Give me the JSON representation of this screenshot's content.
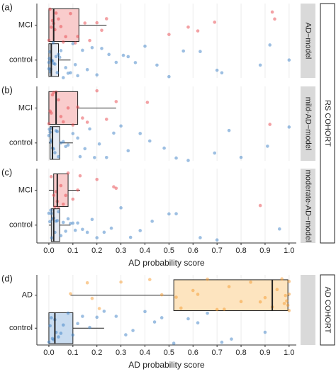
{
  "cohorts": [
    "RS COHORT",
    "AD COHORT"
  ],
  "chart_data": [
    {
      "type": "box",
      "panel": "(a)",
      "strip": "AD−model",
      "xlim": [
        -0.05,
        1.03
      ],
      "xticks": [
        0,
        0.1,
        0.2,
        0.3,
        0.4,
        0.5,
        0.6,
        0.7,
        0.8,
        0.9,
        1
      ],
      "boxes": [
        {
          "category": "MCI",
          "color": "#e8434a",
          "fill": "#f9cccc",
          "whisker_low": 0,
          "q1": 0,
          "median": 0.02,
          "q3": 0.125,
          "whisker_high": 0.24,
          "points": [
            0,
            0.005,
            0.01,
            0.015,
            0.02,
            0.025,
            0.03,
            0.04,
            0.05,
            0.06,
            0.07,
            0.09,
            0.11,
            0.12,
            0.15,
            0.17,
            0.2,
            0.22,
            0.24,
            0.5,
            0.58,
            0.62,
            0.69,
            0.93,
            0.94
          ]
        },
        {
          "category": "control",
          "color": "#3c7fc6",
          "fill": "#e6ebf3",
          "whisker_low": 0,
          "q1": 0,
          "median": 0.01,
          "q3": 0.04,
          "whisker_high": 0.09,
          "points": [
            0,
            0,
            0.002,
            0.004,
            0.006,
            0.008,
            0.01,
            0.012,
            0.015,
            0.018,
            0.02,
            0.025,
            0.03,
            0.035,
            0.04,
            0.045,
            0.05,
            0.06,
            0.07,
            0.08,
            0.09,
            0.1,
            0.11,
            0.12,
            0.14,
            0.16,
            0.18,
            0.2,
            0.22,
            0.25,
            0.28,
            0.31,
            0.33,
            0.36,
            0.4,
            0.45,
            0.5,
            0.56,
            0.63,
            0.7,
            0.72,
            0.88,
            0.92,
            1.0
          ]
        }
      ]
    },
    {
      "type": "box",
      "panel": "(b)",
      "strip": "mild-AD−model",
      "xlim": [
        -0.05,
        1.03
      ],
      "xticks": [
        0,
        0.1,
        0.2,
        0.3,
        0.4,
        0.5,
        0.6,
        0.7,
        0.8,
        0.9,
        1
      ],
      "boxes": [
        {
          "category": "MCI",
          "color": "#e8434a",
          "fill": "#f9cccc",
          "whisker_low": 0,
          "q1": 0,
          "median": 0.03,
          "q3": 0.12,
          "whisker_high": 0.28,
          "points": [
            0,
            0.005,
            0.01,
            0.015,
            0.02,
            0.03,
            0.04,
            0.05,
            0.06,
            0.08,
            0.1,
            0.12,
            0.14,
            0.16,
            0.2,
            0.24,
            0.28,
            0.41,
            0.92
          ]
        },
        {
          "category": "control",
          "color": "#3c7fc6",
          "fill": "#e6ebf3",
          "whisker_low": 0,
          "q1": 0.005,
          "median": 0.015,
          "q3": 0.045,
          "whisker_high": 0.1,
          "points": [
            0,
            0.002,
            0.005,
            0.008,
            0.01,
            0.012,
            0.015,
            0.02,
            0.025,
            0.03,
            0.035,
            0.04,
            0.05,
            0.06,
            0.07,
            0.08,
            0.1,
            0.12,
            0.13,
            0.15,
            0.17,
            0.19,
            0.21,
            0.24,
            0.27,
            0.3,
            0.33,
            0.38,
            0.42,
            0.48,
            0.53,
            0.58,
            0.69,
            0.75,
            0.8,
            0.91,
            1.0
          ]
        }
      ]
    },
    {
      "type": "box",
      "panel": "(c)",
      "strip": "moderate-AD−model",
      "xlabel": "AD probability score",
      "xlim": [
        -0.05,
        1.03
      ],
      "xticks": [
        {
          "value": 0,
          "label": "0.0"
        },
        {
          "value": 0.1,
          "label": "0.1"
        },
        {
          "value": 0.2,
          "label": "0.2"
        },
        {
          "value": 0.3,
          "label": "0.3"
        },
        {
          "value": 0.4,
          "label": "0.4"
        },
        {
          "value": 0.5,
          "label": "0.5"
        },
        {
          "value": 0.6,
          "label": "0.6"
        },
        {
          "value": 0.7,
          "label": "0.7"
        },
        {
          "value": 0.8,
          "label": "0.8"
        },
        {
          "value": 0.9,
          "label": "0.9"
        },
        {
          "value": 1,
          "label": "1.0"
        }
      ],
      "boxes": [
        {
          "category": "MCI",
          "color": "#e8434a",
          "fill": "#f9cccc",
          "whisker_low": 0,
          "q1": 0.02,
          "median": 0.035,
          "q3": 0.08,
          "whisker_high": 0.13,
          "points": [
            0.01,
            0.02,
            0.025,
            0.03,
            0.035,
            0.04,
            0.05,
            0.06,
            0.07,
            0.08,
            0.1,
            0.12,
            0.13,
            0.2,
            0.27,
            0.28,
            0.88
          ]
        },
        {
          "category": "control",
          "color": "#3c7fc6",
          "fill": "#e6ebf3",
          "whisker_low": 0,
          "q1": 0.01,
          "median": 0.02,
          "q3": 0.045,
          "whisker_high": 0.09,
          "points": [
            0,
            0.004,
            0.008,
            0.01,
            0.012,
            0.015,
            0.02,
            0.025,
            0.03,
            0.035,
            0.04,
            0.05,
            0.06,
            0.07,
            0.08,
            0.09,
            0.1,
            0.11,
            0.12,
            0.14,
            0.16,
            0.18,
            0.2,
            0.23,
            0.26,
            0.3,
            0.34,
            0.38,
            0.43,
            0.5,
            0.53,
            0.63,
            0.7,
            0.96
          ]
        }
      ]
    },
    {
      "type": "box",
      "panel": "(d)",
      "strip": "AD COHORT",
      "xlabel": "AD probability score",
      "xlim": [
        -0.05,
        1.03
      ],
      "xticks": [
        {
          "value": 0,
          "label": "0.0"
        },
        {
          "value": 0.1,
          "label": "0.1"
        },
        {
          "value": 0.2,
          "label": "0.2"
        },
        {
          "value": 0.3,
          "label": "0.3"
        },
        {
          "value": 0.4,
          "label": "0.4"
        },
        {
          "value": 0.5,
          "label": "0.5"
        },
        {
          "value": 0.6,
          "label": "0.6"
        },
        {
          "value": 0.7,
          "label": "0.7"
        },
        {
          "value": 0.8,
          "label": "0.8"
        },
        {
          "value": 0.9,
          "label": "0.9"
        },
        {
          "value": 1,
          "label": "1.0"
        }
      ],
      "boxes": [
        {
          "category": "AD",
          "color": "#f59a2e",
          "fill": "#fde4bf",
          "whisker_low": 0.09,
          "q1": 0.52,
          "median": 0.93,
          "q3": 0.995,
          "whisker_high": 1.0,
          "points": [
            0.09,
            0.16,
            0.18,
            0.21,
            0.3,
            0.42,
            0.47,
            0.53,
            0.55,
            0.6,
            0.62,
            0.66,
            0.7,
            0.73,
            0.75,
            0.8,
            0.84,
            0.88,
            0.9,
            0.93,
            0.95,
            0.97,
            0.98,
            0.985,
            0.99,
            0.995,
            1.0,
            1.0,
            1.0
          ]
        },
        {
          "category": "control",
          "color": "#3c7fc6",
          "fill": "#c9dcf0",
          "whisker_low": 0,
          "q1": 0,
          "median": 0.025,
          "q3": 0.1,
          "whisker_high": 0.23,
          "points": [
            0,
            0.005,
            0.01,
            0.015,
            0.02,
            0.025,
            0.03,
            0.04,
            0.05,
            0.06,
            0.08,
            0.1,
            0.12,
            0.14,
            0.17,
            0.2,
            0.23,
            0.28,
            0.32,
            0.35,
            0.4,
            0.44,
            0.47,
            0.52,
            0.58,
            0.62,
            0.66,
            0.72,
            0.76,
            0.9
          ]
        }
      ]
    }
  ]
}
